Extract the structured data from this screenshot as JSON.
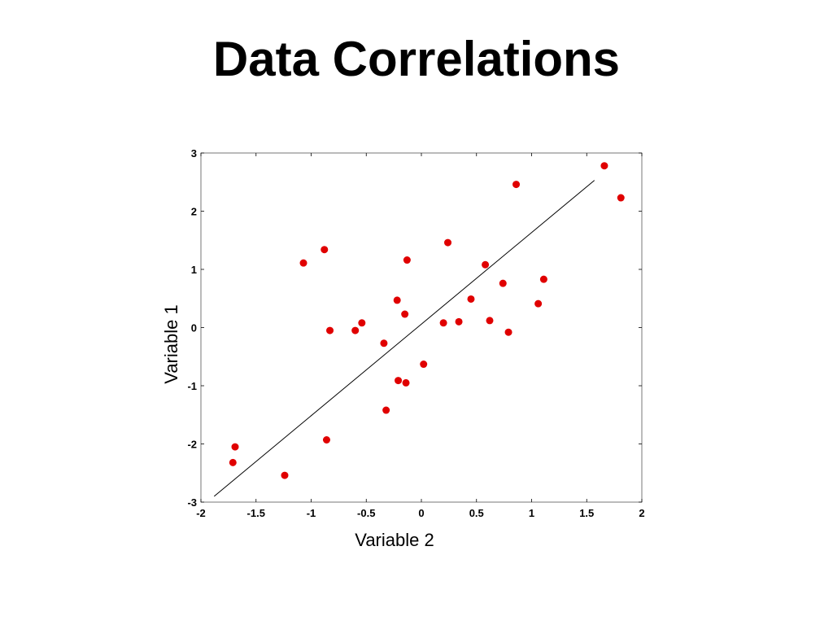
{
  "slide": {
    "title": "Data Correlations"
  },
  "chart_data": {
    "type": "scatter",
    "title": "",
    "xlabel": "Variable 2",
    "ylabel": "Variable 1",
    "xlim": [
      -2,
      2
    ],
    "ylim": [
      -3,
      3
    ],
    "x_ticks": [
      -2,
      -1.5,
      -1,
      -0.5,
      0,
      0.5,
      1,
      1.5,
      2
    ],
    "x_tick_labels": [
      "-2",
      "-1.5",
      "-1",
      "-0.5",
      "0",
      "0.5",
      "1",
      "1.5",
      "2"
    ],
    "y_ticks": [
      3,
      2,
      1,
      0,
      -1,
      -2,
      -3
    ],
    "y_tick_labels": [
      "3",
      "2",
      "1",
      "0",
      "-1",
      "-2",
      "-3"
    ],
    "grid": false,
    "point_color": "#e00000",
    "line_color": "#000000",
    "series": [
      {
        "x": [
          -1.71,
          -1.69,
          -1.24,
          -1.07,
          -0.88,
          -0.86,
          -0.83,
          -0.6,
          -0.54,
          -0.34,
          -0.32,
          -0.22,
          -0.21,
          -0.15,
          -0.14,
          -0.13,
          0.02,
          0.2,
          0.24,
          0.34,
          0.45,
          0.58,
          0.62,
          0.74,
          0.79,
          1.06,
          1.11,
          1.66,
          1.81,
          0.86
        ],
        "y": [
          -2.32,
          -2.05,
          -2.54,
          1.11,
          1.34,
          -1.93,
          -0.05,
          -0.05,
          0.08,
          -0.27,
          -1.42,
          0.47,
          -0.91,
          0.23,
          -0.95,
          1.16,
          -0.63,
          0.08,
          1.46,
          0.1,
          0.49,
          1.08,
          0.12,
          0.76,
          -0.08,
          0.41,
          0.83,
          2.78,
          2.23,
          2.46
        ]
      }
    ],
    "fit_line": {
      "x": [
        -1.88,
        1.57
      ],
      "y": [
        -2.9,
        2.53
      ]
    }
  }
}
